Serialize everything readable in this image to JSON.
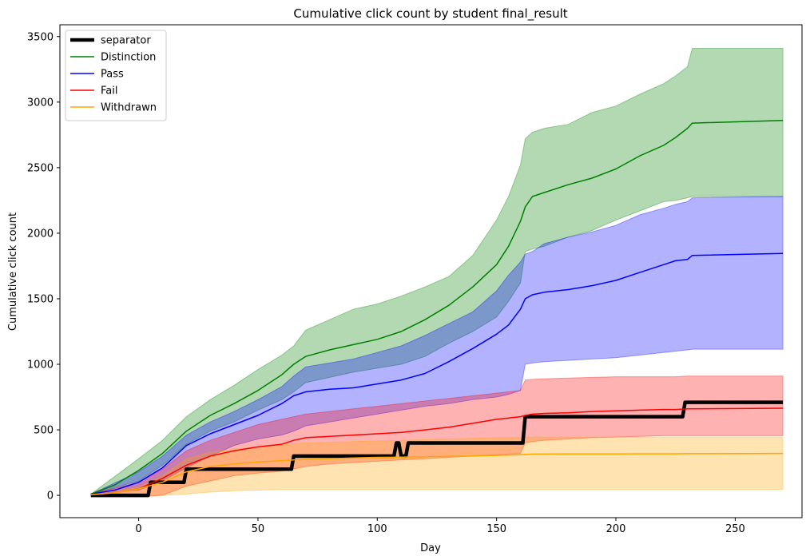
{
  "chart_data": {
    "type": "line",
    "title": "Cumulative click count by student final_result",
    "xlabel": "Day",
    "ylabel": "Cumulative click count",
    "xlim": [
      -33,
      278
    ],
    "ylim": [
      -170,
      3590
    ],
    "xticks": [
      0,
      50,
      100,
      150,
      200,
      250
    ],
    "yticks": [
      0,
      500,
      1000,
      1500,
      2000,
      2500,
      3000,
      3500
    ],
    "grid": false,
    "legend_position": "top-left",
    "bands": [
      {
        "series": "Distinction",
        "color": "#008000",
        "x": [
          -20,
          0,
          10,
          20,
          30,
          40,
          50,
          60,
          65,
          70,
          80,
          90,
          100,
          110,
          120,
          130,
          140,
          150,
          155,
          160,
          162,
          165,
          170,
          180,
          190,
          200,
          210,
          220,
          225,
          230,
          232,
          270
        ],
        "lower": [
          10,
          110,
          230,
          390,
          490,
          560,
          650,
          730,
          790,
          860,
          900,
          940,
          970,
          1000,
          1060,
          1160,
          1250,
          1360,
          1480,
          1620,
          1860,
          1880,
          1900,
          1970,
          2020,
          2100,
          2170,
          2240,
          2250,
          2270,
          2280,
          2280
        ],
        "upper": [
          10,
          280,
          420,
          600,
          730,
          840,
          960,
          1070,
          1140,
          1260,
          1340,
          1420,
          1460,
          1520,
          1590,
          1670,
          1830,
          2100,
          2280,
          2520,
          2720,
          2770,
          2800,
          2830,
          2920,
          2970,
          3060,
          3140,
          3200,
          3270,
          3410,
          3410
        ]
      },
      {
        "series": "Pass",
        "color": "#0000ff",
        "x": [
          -20,
          0,
          10,
          20,
          30,
          40,
          50,
          60,
          65,
          70,
          80,
          90,
          100,
          110,
          120,
          130,
          140,
          150,
          155,
          160,
          162,
          165,
          170,
          180,
          190,
          200,
          210,
          220,
          225,
          230,
          232,
          270
        ],
        "lower": [
          10,
          40,
          110,
          210,
          300,
          380,
          430,
          460,
          490,
          530,
          560,
          590,
          620,
          650,
          680,
          700,
          730,
          750,
          770,
          800,
          1000,
          1010,
          1020,
          1030,
          1040,
          1050,
          1070,
          1090,
          1100,
          1110,
          1115,
          1115
        ],
        "upper": [
          10,
          180,
          300,
          460,
          560,
          640,
          730,
          830,
          910,
          980,
          1010,
          1040,
          1090,
          1140,
          1220,
          1310,
          1400,
          1560,
          1680,
          1780,
          1840,
          1860,
          1920,
          1970,
          2010,
          2060,
          2140,
          2190,
          2220,
          2240,
          2270,
          2280
        ]
      },
      {
        "series": "Fail",
        "color": "#ff0000",
        "x": [
          -20,
          0,
          10,
          20,
          30,
          40,
          50,
          60,
          65,
          70,
          80,
          90,
          100,
          110,
          120,
          130,
          140,
          150,
          155,
          160,
          162,
          165,
          170,
          180,
          190,
          200,
          210,
          220,
          225,
          230,
          232,
          270
        ],
        "lower": [
          0,
          -10,
          0,
          70,
          110,
          150,
          170,
          185,
          200,
          220,
          240,
          250,
          260,
          270,
          280,
          290,
          300,
          310,
          315,
          320,
          400,
          410,
          420,
          430,
          440,
          445,
          450,
          455,
          455,
          455,
          455,
          455
        ],
        "upper": [
          10,
          100,
          200,
          340,
          420,
          480,
          540,
          580,
          600,
          620,
          640,
          660,
          680,
          700,
          720,
          740,
          760,
          780,
          790,
          800,
          880,
          885,
          890,
          895,
          900,
          905,
          905,
          905,
          905,
          910,
          910,
          910
        ]
      },
      {
        "series": "Withdrawn",
        "color": "#ffa500",
        "x": [
          -20,
          0,
          10,
          20,
          30,
          40,
          50,
          60,
          65,
          70,
          80,
          90,
          100,
          110,
          120,
          130,
          140,
          150,
          155,
          160,
          162,
          165,
          170,
          180,
          190,
          200,
          210,
          220,
          225,
          230,
          232,
          270
        ],
        "lower": [
          0,
          0,
          0,
          10,
          25,
          35,
          40,
          45,
          45,
          45,
          45,
          45,
          45,
          45,
          45,
          45,
          45,
          45,
          45,
          45,
          45,
          45,
          45,
          45,
          45,
          45,
          45,
          45,
          45,
          45,
          45,
          45
        ],
        "upper": [
          10,
          60,
          150,
          280,
          330,
          350,
          370,
          385,
          395,
          400,
          405,
          410,
          415,
          420,
          425,
          430,
          435,
          440,
          440,
          440,
          445,
          445,
          445,
          445,
          445,
          445,
          445,
          445,
          445,
          445,
          445,
          445
        ]
      }
    ],
    "series": [
      {
        "name": "separator",
        "color": "#000000",
        "width": 4.5,
        "x": [
          -20,
          4,
          5,
          19,
          20,
          64,
          65,
          107,
          108,
          109,
          110,
          112,
          113,
          161,
          162,
          228,
          229,
          270
        ],
        "y": [
          0,
          0,
          100,
          100,
          200,
          200,
          300,
          300,
          400,
          400,
          300,
          300,
          400,
          400,
          600,
          600,
          710,
          710
        ]
      },
      {
        "name": "Distinction",
        "color": "#008000",
        "width": 1.5,
        "x": [
          -20,
          -10,
          0,
          10,
          20,
          30,
          40,
          50,
          60,
          65,
          70,
          80,
          90,
          100,
          110,
          120,
          130,
          140,
          150,
          155,
          160,
          162,
          165,
          170,
          180,
          190,
          200,
          210,
          220,
          225,
          230,
          232,
          270
        ],
        "y": [
          10,
          80,
          190,
          320,
          490,
          610,
          700,
          800,
          920,
          1000,
          1060,
          1110,
          1150,
          1190,
          1250,
          1340,
          1450,
          1590,
          1760,
          1900,
          2090,
          2200,
          2280,
          2310,
          2370,
          2420,
          2490,
          2590,
          2670,
          2730,
          2800,
          2840,
          2860
        ]
      },
      {
        "name": "Pass",
        "color": "#0000ff",
        "width": 1.5,
        "x": [
          -20,
          -10,
          0,
          10,
          20,
          30,
          40,
          50,
          60,
          65,
          70,
          80,
          90,
          100,
          110,
          120,
          130,
          140,
          150,
          155,
          160,
          162,
          165,
          170,
          180,
          190,
          200,
          210,
          220,
          225,
          230,
          232,
          270
        ],
        "y": [
          10,
          40,
          100,
          210,
          380,
          470,
          540,
          610,
          700,
          760,
          790,
          810,
          820,
          850,
          880,
          930,
          1020,
          1120,
          1230,
          1300,
          1420,
          1500,
          1530,
          1550,
          1570,
          1600,
          1640,
          1700,
          1760,
          1790,
          1800,
          1830,
          1845
        ]
      },
      {
        "name": "Fail",
        "color": "#ff0000",
        "width": 1.5,
        "x": [
          -20,
          -10,
          0,
          10,
          20,
          30,
          40,
          50,
          60,
          65,
          70,
          80,
          90,
          100,
          110,
          120,
          130,
          140,
          150,
          155,
          160,
          162,
          165,
          170,
          180,
          190,
          200,
          210,
          220,
          225,
          230,
          232,
          270
        ],
        "y": [
          5,
          20,
          50,
          130,
          230,
          300,
          340,
          370,
          390,
          420,
          440,
          450,
          460,
          470,
          480,
          500,
          520,
          550,
          580,
          590,
          600,
          610,
          620,
          625,
          630,
          640,
          645,
          650,
          655,
          655,
          660,
          660,
          665
        ]
      },
      {
        "name": "Withdrawn",
        "color": "#ffa500",
        "width": 1.5,
        "x": [
          -20,
          -10,
          0,
          10,
          20,
          30,
          40,
          50,
          60,
          65,
          70,
          80,
          90,
          100,
          110,
          120,
          130,
          140,
          150,
          155,
          160,
          162,
          165,
          170,
          180,
          190,
          200,
          210,
          220,
          225,
          230,
          232,
          270
        ],
        "y": [
          5,
          20,
          50,
          100,
          180,
          220,
          240,
          255,
          265,
          270,
          275,
          280,
          285,
          290,
          292,
          295,
          298,
          300,
          305,
          308,
          310,
          312,
          315,
          315,
          316,
          316,
          316,
          317,
          317,
          317,
          318,
          318,
          320
        ]
      }
    ],
    "legend": [
      {
        "label": "separator",
        "color": "#000000",
        "width": 4.5
      },
      {
        "label": "Distinction",
        "color": "#008000",
        "width": 1.5
      },
      {
        "label": "Pass",
        "color": "#0000ff",
        "width": 1.5
      },
      {
        "label": "Fail",
        "color": "#ff0000",
        "width": 1.5
      },
      {
        "label": "Withdrawn",
        "color": "#ffa500",
        "width": 1.5
      }
    ]
  }
}
